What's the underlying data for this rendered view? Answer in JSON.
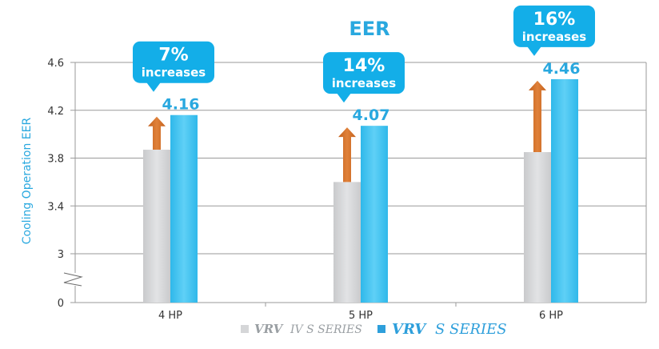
{
  "chart_data": {
    "type": "bar",
    "title": "EER",
    "ylabel": "Cooling Operation EER",
    "xlabel": "",
    "categories": [
      "4 HP",
      "5 HP",
      "6 HP"
    ],
    "series": [
      {
        "name": "VRV IV S SERIES",
        "values": [
          3.87,
          3.6,
          3.85
        ]
      },
      {
        "name": "VRV S SERIES",
        "values": [
          4.16,
          4.07,
          4.46
        ]
      }
    ],
    "data_labels": [
      "4.16",
      "4.07",
      "4.46"
    ],
    "callouts": [
      {
        "pct": "7%",
        "text": "increases"
      },
      {
        "pct": "14%",
        "text": "increases"
      },
      {
        "pct": "16%",
        "text": "increases"
      }
    ],
    "yticks": [
      {
        "value": 0,
        "label": "0"
      },
      {
        "value": 3,
        "label": "3"
      },
      {
        "value": 3.4,
        "label": "3.4"
      },
      {
        "value": 3.8,
        "label": "3.8"
      },
      {
        "value": 4.2,
        "label": "4.2"
      },
      {
        "value": 4.6,
        "label": "4.6"
      }
    ],
    "ylim": [
      0,
      4.6
    ],
    "axis_break": true,
    "grid": true,
    "legend_position": "bottom",
    "legend": [
      {
        "brand": "VRV",
        "suffix": "IV S SERIES"
      },
      {
        "brand": "VRV",
        "suffix": "S SERIES"
      }
    ]
  },
  "colors": {
    "title": "#29a8df",
    "old_series": "#d5d6d8",
    "new_series": "#45c6f2",
    "arrow": "#d06e26",
    "callout": "#13aee8",
    "grid": "#9a9a9a",
    "legend_old_text": "#9a9fa3",
    "legend_new_text": "#2e9fdb"
  }
}
